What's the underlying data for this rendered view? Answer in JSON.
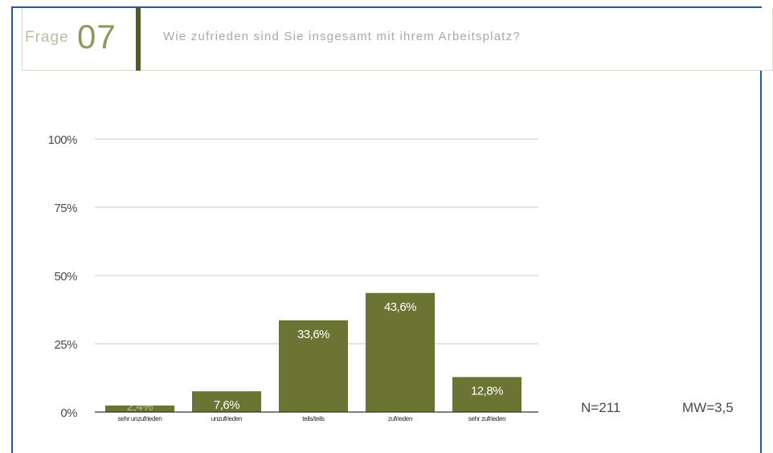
{
  "header": {
    "frage_label": "Frage",
    "frage_number": "07",
    "question": "Wie zufrieden sind Sie insgesamt mit ihrem Arbeitsplatz?"
  },
  "stats": {
    "n": "N=211",
    "mw": "MW=3,5"
  },
  "colors": {
    "bar": "#6b7432",
    "frame_blue": "#1f5aa5",
    "header_bar": "#4f5c23"
  },
  "chart_data": {
    "type": "bar",
    "categories": [
      "sehr unzufrieden",
      "unzufrieden",
      "teils/teils",
      "zufrieden",
      "sehr zufrieden"
    ],
    "values": [
      2.4,
      7.6,
      33.6,
      43.6,
      12.8
    ],
    "value_labels": [
      "2,4%",
      "7,6%",
      "33,6%",
      "43,6%",
      "12,8%"
    ],
    "y_ticks": [
      0,
      25,
      50,
      75,
      100
    ],
    "y_tick_labels": [
      "0%",
      "25%",
      "50%",
      "75%",
      "100%"
    ],
    "ylim": [
      0,
      100
    ],
    "grid": true,
    "title": "",
    "xlabel": "",
    "ylabel": ""
  }
}
